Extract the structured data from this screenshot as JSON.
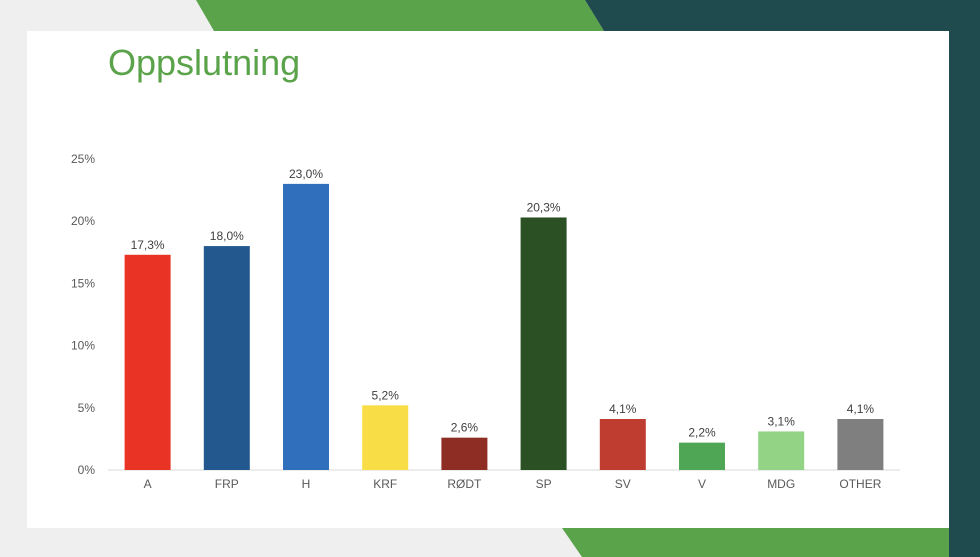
{
  "slide": {
    "title": "Oppslutning",
    "colors": {
      "green_band": "#5aa34a",
      "dark_band": "#1f4b4f",
      "title": "#5aa34a"
    }
  },
  "chart_data": {
    "type": "bar",
    "categories": [
      "A",
      "FRP",
      "H",
      "KRF",
      "RØDT",
      "SP",
      "SV",
      "V",
      "MDG",
      "OTHER"
    ],
    "values": [
      17.3,
      18.0,
      23.0,
      5.2,
      2.6,
      20.3,
      4.1,
      2.2,
      3.1,
      4.1
    ],
    "data_labels": [
      "17,3%",
      "18,0%",
      "23,0%",
      "5,2%",
      "2,6%",
      "20,3%",
      "4,1%",
      "2,2%",
      "3,1%",
      "4,1%"
    ],
    "bar_colors": [
      "#e93324",
      "#23588f",
      "#2f6fbc",
      "#f8dd46",
      "#8e2d24",
      "#2b5023",
      "#bf3c30",
      "#4fa756",
      "#93d386",
      "#7f7f7f"
    ],
    "ylim": [
      0,
      25
    ],
    "yticks": [
      0,
      5,
      10,
      15,
      20,
      25
    ],
    "ytick_labels": [
      "0%",
      "5%",
      "10%",
      "15%",
      "20%",
      "25%"
    ],
    "grid": false,
    "legend": "none"
  }
}
